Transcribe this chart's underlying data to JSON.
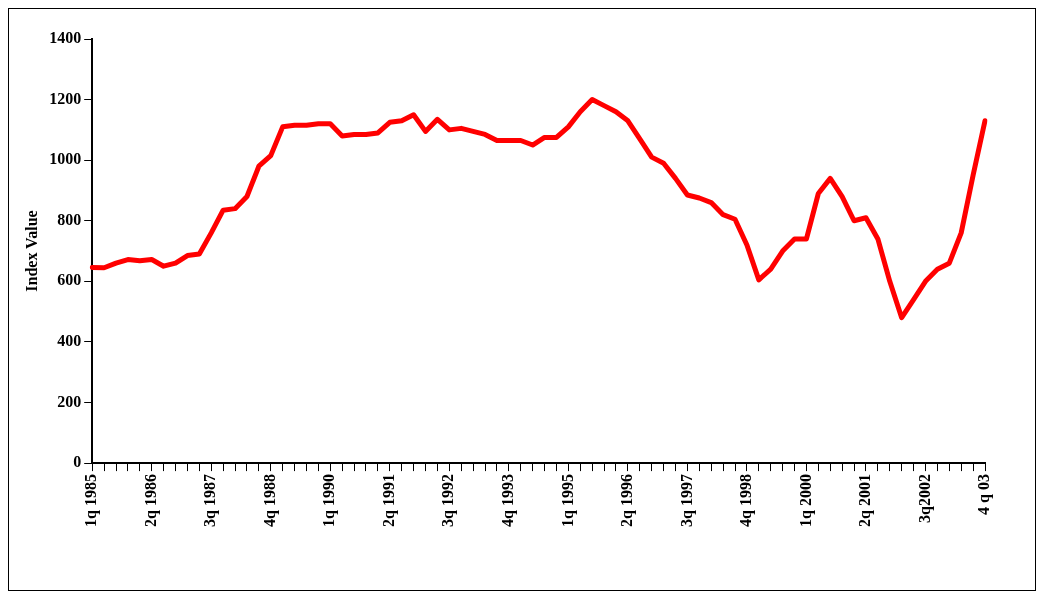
{
  "chart_data": {
    "type": "line",
    "ylabel": "Index Value",
    "categories": [
      "1q 1985",
      null,
      null,
      null,
      null,
      "2q 1986",
      null,
      null,
      null,
      null,
      "3q 1987",
      null,
      null,
      null,
      null,
      "4q 1988",
      null,
      null,
      null,
      null,
      "1q 1990",
      null,
      null,
      null,
      null,
      "2q 1991",
      null,
      null,
      null,
      null,
      "3q 1992",
      null,
      null,
      null,
      null,
      "4q 1993",
      null,
      null,
      null,
      null,
      "1q 1995",
      null,
      null,
      null,
      null,
      "2q 1996",
      null,
      null,
      null,
      null,
      "3q 1997",
      null,
      null,
      null,
      null,
      "4q 1998",
      null,
      null,
      null,
      null,
      "1q 2000",
      null,
      null,
      null,
      null,
      "2q 2001",
      null,
      null,
      null,
      null,
      "3q2002",
      null,
      null,
      null,
      null,
      "4 q 03"
    ],
    "series": [
      {
        "color": "#ff0000",
        "values": [
          646,
          645,
          660,
          672,
          668,
          672,
          650,
          660,
          685,
          690,
          760,
          835,
          840,
          880,
          980,
          1015,
          1110,
          1115,
          1115,
          1120,
          1120,
          1080,
          1085,
          1085,
          1090,
          1125,
          1130,
          1150,
          1095,
          1135,
          1100,
          1105,
          1095,
          1085,
          1065,
          1065,
          1065,
          1050,
          1075,
          1075,
          1110,
          1160,
          1200,
          1180,
          1160,
          1130,
          1070,
          1010,
          990,
          940,
          885,
          875,
          860,
          820,
          805,
          720,
          605,
          640,
          700,
          740,
          740,
          890,
          940,
          880,
          800,
          810,
          740,
          600,
          480,
          540,
          600,
          640,
          660,
          760,
          950,
          1130
        ]
      }
    ],
    "ylim": [
      0,
      1400
    ],
    "yticks": [
      0,
      200,
      400,
      600,
      800,
      1000,
      1200,
      1400
    ],
    "grid": false,
    "legend": false,
    "marker": "none",
    "line_style": "solid"
  }
}
